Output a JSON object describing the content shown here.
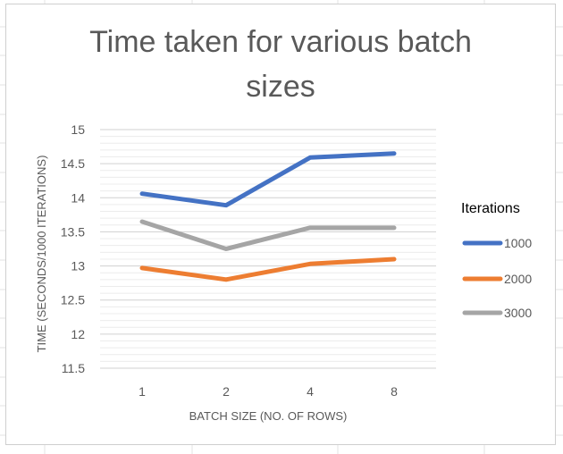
{
  "chart_data": {
    "type": "line",
    "title_lines": [
      "Time taken for various batch",
      "sizes"
    ],
    "xlabel": "BATCH SIZE (NO. OF ROWS)",
    "ylabel": "TIME (SECONDS/1000 ITERATIONS)",
    "categories": [
      "1",
      "2",
      "4",
      "8"
    ],
    "ylim": [
      11.5,
      15
    ],
    "yticks": [
      "11.5",
      "12",
      "12.5",
      "13",
      "13.5",
      "14",
      "14.5",
      "15"
    ],
    "grid": true,
    "legend": {
      "title": "Iterations",
      "placement": "right"
    },
    "series": [
      {
        "name": "1000",
        "color": "#4472C4",
        "values": [
          14.06,
          13.89,
          14.59,
          14.65
        ]
      },
      {
        "name": "2000",
        "color": "#ED7D31",
        "values": [
          12.97,
          12.8,
          13.03,
          13.1
        ]
      },
      {
        "name": "3000",
        "color": "#A5A5A5",
        "values": [
          13.65,
          13.25,
          13.56,
          13.56
        ]
      }
    ]
  }
}
